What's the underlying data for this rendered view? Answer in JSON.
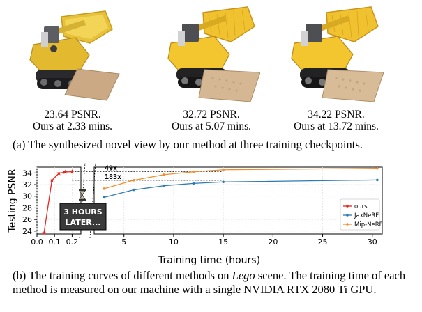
{
  "panel_a": {
    "renders": [
      {
        "psnr": "23.64 PSNR.",
        "time": "Ours at 2.33 mins."
      },
      {
        "psnr": "32.72 PSNR.",
        "time": "Ours at 5.07 mins."
      },
      {
        "psnr": "34.22 PSNR.",
        "time": "Ours at 13.72 mins."
      }
    ],
    "caption": "(a) The synthesized novel view by our method at three training checkpoints."
  },
  "chart_data": {
    "type": "line",
    "title": "",
    "xlabel": "Training time (hours)",
    "ylabel": "Testing PSNR",
    "ylim": [
      23.5,
      35
    ],
    "y_ticks": [
      "24",
      "26",
      "28",
      "30",
      "32",
      "34"
    ],
    "x_ticks_left": [
      "0.0",
      "0.1",
      "0.2"
    ],
    "x_ticks_right": [
      "5",
      "10",
      "15",
      "20",
      "25",
      "30"
    ],
    "xlim_left": [
      0,
      0.25
    ],
    "xlim_right": [
      2,
      31
    ],
    "legend_position": "lower-right",
    "grid": true,
    "series": [
      {
        "name": "ours",
        "color": "#e8261f",
        "panel": "left",
        "x": [
          0.04,
          0.085,
          0.125,
          0.16,
          0.2
        ],
        "y": [
          23.64,
          32.72,
          33.95,
          34.15,
          34.22
        ]
      },
      {
        "name": "JaxNeRF",
        "color": "#2e7bb4",
        "panel": "right",
        "x": [
          3,
          6,
          9,
          12,
          15,
          30.5
        ],
        "y": [
          29.8,
          31.1,
          31.8,
          32.2,
          32.45,
          32.8
        ]
      },
      {
        "name": "Mip-NeRF",
        "color": "#f28e2b",
        "panel": "right",
        "x": [
          3,
          6,
          9,
          12,
          15,
          30.5
        ],
        "y": [
          31.3,
          32.75,
          33.7,
          34.2,
          34.55,
          34.8
        ]
      }
    ],
    "annotations": [
      {
        "text": "49x",
        "y": 34.22
      },
      {
        "text": "183x",
        "y": 32.72
      }
    ],
    "break_label": "3 HOURS\nLATER..."
  },
  "break_label_lines": [
    "3 HOURS",
    "LATER..."
  ],
  "panel_b": {
    "caption_before": "(b) The training curves of different methods on ",
    "caption_italic": "Lego",
    "caption_after": " scene. The training time of each method is measured on our machine with a single NVIDIA RTX 2080 Ti GPU."
  }
}
